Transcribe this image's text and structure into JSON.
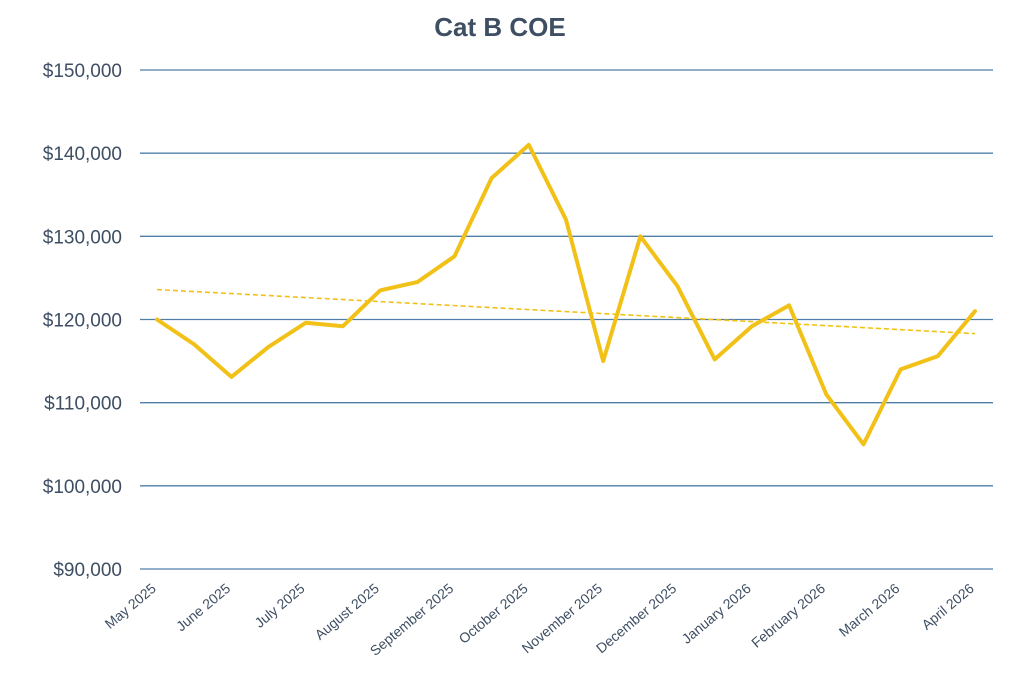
{
  "colors": {
    "line": "#F2C118",
    "trend": "#F2C118",
    "grid": "#4F7FA8",
    "text": "#3E4E63"
  },
  "chart_data": {
    "type": "line",
    "title": "Cat B COE",
    "xlabel": "",
    "ylabel": "",
    "ylim": [
      90000,
      150000
    ],
    "yticks": [
      90000,
      100000,
      110000,
      120000,
      130000,
      140000,
      150000
    ],
    "ytick_labels": [
      "$90,000",
      "$100,000",
      "$110,000",
      "$120,000",
      "$130,000",
      "$140,000",
      "$150,000"
    ],
    "x_labels": [
      "May 2025",
      "June 2025",
      "July 2025",
      "August 2025",
      "September 2025",
      "October 2025",
      "November 2025",
      "December 2025",
      "January 2026",
      "February 2026",
      "March 2026",
      "April 2026"
    ],
    "grid": true,
    "legend": "none",
    "series": [
      {
        "values": [
          120000,
          117000,
          113100,
          116700,
          119600,
          119200,
          123500,
          124500,
          127600,
          137000,
          141000,
          132000,
          115000,
          130000,
          124000,
          115200,
          119200,
          121700,
          111000,
          105000,
          114000,
          115600,
          121000
        ]
      }
    ],
    "trendline": {
      "type": "linear",
      "start": 123600,
      "end": 118300
    }
  }
}
